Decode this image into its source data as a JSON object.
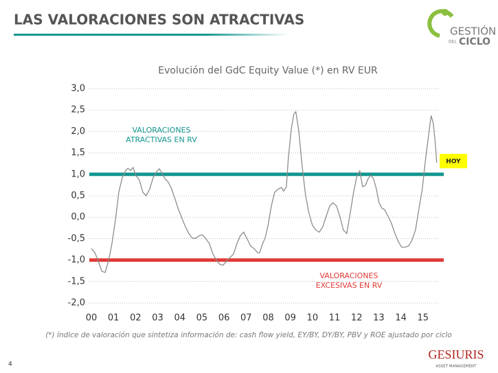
{
  "header": {
    "title": "LAS VALORACIONES SON ATRACTIVAS",
    "logo": [
      "GESTIÓN",
      "DEL",
      "CICLO"
    ]
  },
  "chart_data": {
    "type": "line",
    "title": "Evolución del GdC Equity Value (*) en RV EUR",
    "xlim": [
      0,
      16
    ],
    "ylim": [
      -2,
      3
    ],
    "xticks": [
      {
        "value": 0,
        "label": "00"
      },
      {
        "value": 1,
        "label": "01"
      },
      {
        "value": 2,
        "label": "02"
      },
      {
        "value": 3,
        "label": "03"
      },
      {
        "value": 4,
        "label": "04"
      },
      {
        "value": 5,
        "label": "05"
      },
      {
        "value": 6,
        "label": "06"
      },
      {
        "value": 7,
        "label": "07"
      },
      {
        "value": 8,
        "label": "08"
      },
      {
        "value": 9,
        "label": "09"
      },
      {
        "value": 10,
        "label": "10"
      },
      {
        "value": 11,
        "label": "11"
      },
      {
        "value": 12,
        "label": "12"
      },
      {
        "value": 13,
        "label": "13"
      },
      {
        "value": 14,
        "label": "14"
      },
      {
        "value": 15,
        "label": "15"
      }
    ],
    "yticks": [
      {
        "value": 3,
        "label": "3,0"
      },
      {
        "value": 2.5,
        "label": "2,5"
      },
      {
        "value": 2,
        "label": "2,0"
      },
      {
        "value": 1.5,
        "label": "1,5"
      },
      {
        "value": 1,
        "label": "1,0"
      },
      {
        "value": 0.5,
        "label": "0,5"
      },
      {
        "value": 0,
        "label": "0,0"
      },
      {
        "value": -0.5,
        "label": "-0,5"
      },
      {
        "value": -1,
        "label": "-1,0"
      },
      {
        "value": -1.5,
        "label": "-1,5"
      },
      {
        "value": -2,
        "label": "-2,0"
      }
    ],
    "grid": true,
    "series": [
      {
        "color": "#8c8c8c",
        "x": [
          0,
          0.16,
          0.31,
          0.47,
          0.62,
          0.78,
          0.93,
          1.09,
          1.24,
          1.4,
          1.55,
          1.65,
          1.77,
          1.89,
          2.02,
          2.17,
          2.33,
          2.48,
          2.64,
          2.8,
          2.95,
          3.07,
          3.2,
          3.32,
          3.48,
          3.63,
          3.79,
          3.94,
          4.1,
          4.25,
          4.41,
          4.57,
          4.72,
          4.88,
          5.03,
          5.19,
          5.34,
          5.5,
          5.65,
          5.81,
          5.96,
          6.12,
          6.27,
          6.43,
          6.58,
          6.74,
          6.89,
          7.05,
          7.2,
          7.36,
          7.52,
          7.61,
          7.73,
          7.86,
          7.98,
          8.14,
          8.29,
          8.45,
          8.6,
          8.7,
          8.82,
          8.91,
          9.04,
          9.16,
          9.25,
          9.38,
          9.53,
          9.69,
          9.84,
          10,
          10.16,
          10.31,
          10.47,
          10.62,
          10.78,
          10.93,
          11.09,
          11.24,
          11.4,
          11.55,
          11.71,
          11.86,
          12.02,
          12.14,
          12.27,
          12.39,
          12.52,
          12.64,
          12.76,
          12.89,
          13.01,
          13.14,
          13.26,
          13.42,
          13.57,
          13.73,
          13.88,
          14.04,
          14.19,
          14.35,
          14.5,
          14.66,
          14.81,
          14.97,
          15.12,
          15.28,
          15.37,
          15.47,
          15.56,
          15.62
        ],
        "values": [
          -0.73,
          -0.83,
          -1.02,
          -1.26,
          -1.29,
          -1.02,
          -0.62,
          -0.06,
          0.58,
          0.93,
          1.09,
          1.14,
          1.09,
          1.16,
          0.97,
          0.87,
          0.58,
          0.5,
          0.66,
          0.93,
          1.06,
          1.13,
          1.03,
          0.9,
          0.82,
          0.66,
          0.42,
          0.18,
          -0.03,
          -0.22,
          -0.38,
          -0.49,
          -0.49,
          -0.43,
          -0.41,
          -0.51,
          -0.62,
          -0.86,
          -0.99,
          -1.1,
          -1.12,
          -1.02,
          -0.94,
          -0.86,
          -0.62,
          -0.43,
          -0.35,
          -0.51,
          -0.67,
          -0.73,
          -0.83,
          -0.83,
          -0.64,
          -0.48,
          -0.22,
          0.26,
          0.58,
          0.66,
          0.69,
          0.61,
          0.71,
          1.38,
          2.05,
          2.41,
          2.46,
          2.02,
          1.22,
          0.5,
          0.1,
          -0.19,
          -0.3,
          -0.35,
          -0.22,
          0.02,
          0.26,
          0.34,
          0.26,
          0.02,
          -0.3,
          -0.38,
          0.1,
          0.58,
          0.98,
          1.08,
          0.71,
          0.74,
          0.9,
          0.98,
          0.9,
          0.66,
          0.34,
          0.21,
          0.18,
          0.02,
          -0.14,
          -0.38,
          -0.57,
          -0.7,
          -0.7,
          -0.67,
          -0.54,
          -0.3,
          0.18,
          0.66,
          1.38,
          2.02,
          2.37,
          2.18,
          1.7,
          1.27
        ]
      }
    ],
    "reference_lines": [
      {
        "value": 1,
        "color": "#13968f",
        "label": [
          "VALORACIONES",
          "ATRACTIVAS EN RV"
        ]
      },
      {
        "value": -1,
        "color": "#e03a36",
        "label": [
          "VALORACIONES",
          "EXCESIVAS EN RV"
        ]
      }
    ],
    "marker_label": "HOY"
  },
  "footnote": "(*) índice de valoración que sintetiza información de: cash flow yield, EY/BY, DY/BY, PBV y ROE ajustado por ciclo",
  "page_number": 4,
  "brand": {
    "name": "GESIURIS",
    "tagline": "ASSET MANAGEMENT"
  }
}
